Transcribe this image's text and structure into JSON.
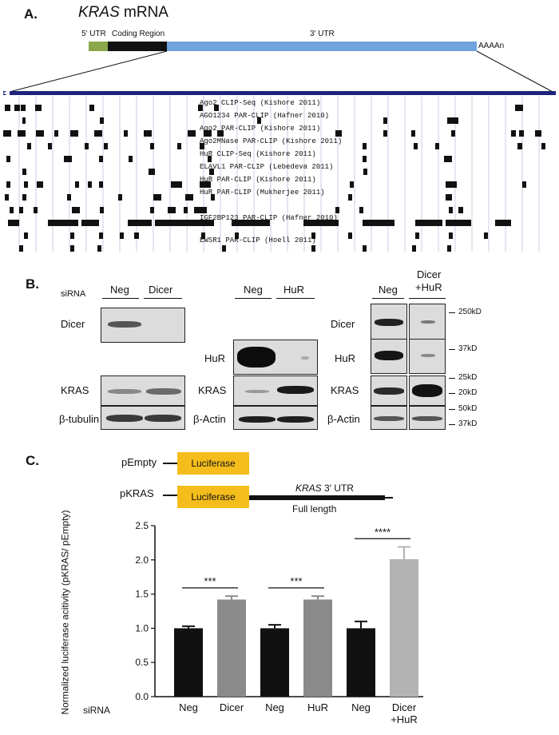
{
  "panelA": {
    "label": "A.",
    "title_italic": "KRAS",
    "title_rest": " mRNA",
    "utr5": "5′ UTR",
    "coding": "Coding Region",
    "utr3": "3′ UTR",
    "polyA": "AAAAn",
    "tracks": [
      "Ago2 CLIP-Seq (Kishore 2011)",
      "AGO1234 PAR-CLIP (Hafner 2010)",
      "Ago2 PAR-CLIP (Kishore 2011)",
      "Ago2MNase PAR-CLIP (Kishore 2011)",
      "HuR CLIP-Seq (Kishore 2011)",
      "ELAVL1 PAR-CLIP (Lebedeva 2011)",
      "HuR PAR-CLIP (Kishore 2011)",
      "HuR PAR-CLIP (Mukherjee 2011)",
      "IGF2BP123 PAR-CLIP (Hafner 2010)",
      "EWSR1 PAR-CLIP (Hoell 2011)"
    ]
  },
  "panelB": {
    "label": "B.",
    "sirna": "siRNA",
    "g1": {
      "lanes": [
        "Neg",
        "Dicer"
      ],
      "rows": [
        "Dicer",
        "KRAS",
        "β-tubulin"
      ]
    },
    "g2": {
      "lanes": [
        "Neg",
        "HuR"
      ],
      "rows": [
        "HuR",
        "KRAS",
        "β-Actin"
      ]
    },
    "g3": {
      "lane1": "Neg",
      "lane2a": "Dicer",
      "lane2b": "+HuR",
      "rows": [
        "Dicer",
        "HuR",
        "KRAS",
        "β-Actin"
      ]
    },
    "markers": [
      "250kD",
      "37kD",
      "25kD",
      "20kD",
      "50kD",
      "37kD"
    ]
  },
  "panelC": {
    "label": "C.",
    "pempty": "pEmpty",
    "pkras": "pKRAS",
    "luciferase": "Luciferase",
    "utr_italic": "KRAS",
    "utr_rest": " 3′ UTR",
    "full_length": "Full length",
    "sirna": "siRNA"
  },
  "chart_data": {
    "type": "bar",
    "ylabel": "Normalized luciferase acitivity (pKRAS/ pEmpty)",
    "ylim": [
      0.0,
      2.5
    ],
    "yticks": [
      "0.0",
      "0.5",
      "1.0",
      "1.5",
      "2.0",
      "2.5"
    ],
    "categories": [
      "Neg",
      "Dicer",
      "Neg",
      "HuR",
      "Neg",
      "Dicer\n+HuR"
    ],
    "values": [
      1.0,
      1.42,
      1.0,
      1.42,
      1.0,
      2.01
    ],
    "errors": [
      0.03,
      0.05,
      0.05,
      0.05,
      0.1,
      0.18
    ],
    "colors": [
      "#111111",
      "#8a8a8a",
      "#111111",
      "#8a8a8a",
      "#111111",
      "#b3b3b3"
    ],
    "significance": [
      "***",
      "***",
      "****"
    ]
  }
}
